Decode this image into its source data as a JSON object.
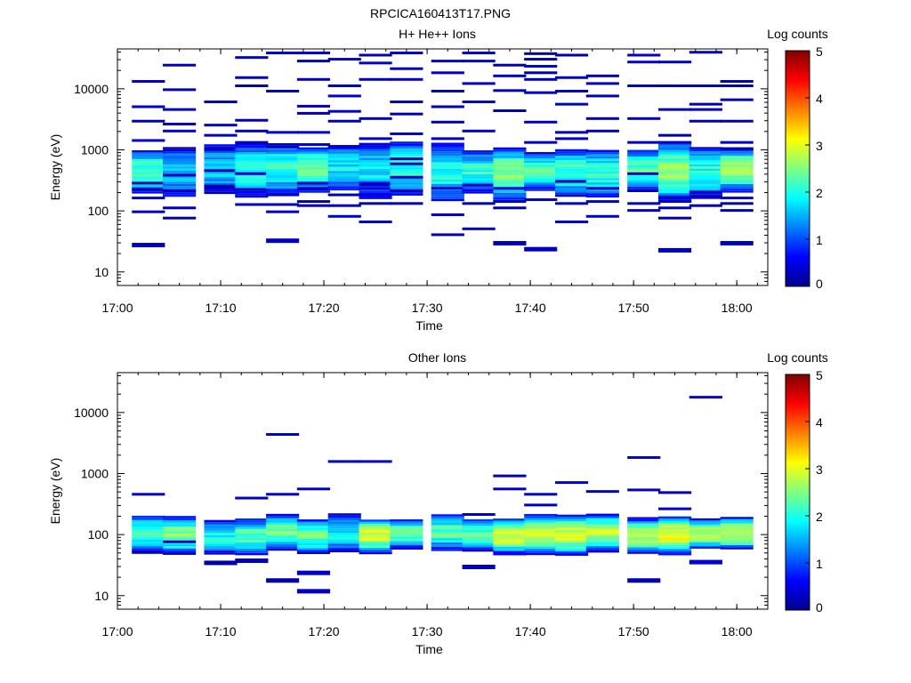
{
  "figure_title": "RPCICA160413T17.PNG",
  "colors": {
    "colormap": [
      "#00008f",
      "#0000ff",
      "#0080ff",
      "#00ffff",
      "#80ff80",
      "#ffff00",
      "#ff8000",
      "#ff0000",
      "#800000"
    ]
  },
  "chart_data": [
    {
      "type": "heatmap",
      "title": "H+ He++ Ions",
      "xlabel": "Time",
      "ylabel": "Energy (eV)",
      "colorbar_label": "Log counts",
      "colorbar_ticks": [
        "0",
        "1",
        "2",
        "3",
        "4",
        "5"
      ],
      "clim": [
        0,
        5
      ],
      "xlim": [
        "17:00",
        "18:03"
      ],
      "x_ticks": [
        "17:00",
        "17:10",
        "17:20",
        "17:30",
        "17:40",
        "17:50",
        "18:00"
      ],
      "ylim": [
        6,
        45000
      ],
      "y_scale": "log",
      "y_ticks": [
        "10",
        "100",
        "1000",
        "10000"
      ],
      "time_bins": [
        "17:03",
        "17:06",
        "17:10",
        "17:13",
        "17:16",
        "17:19",
        "17:22",
        "17:25",
        "17:28",
        "17:32",
        "17:35",
        "17:38",
        "17:41",
        "17:44",
        "17:47",
        "17:51",
        "17:54",
        "17:57",
        "18:00"
      ],
      "sparse_bins": [
        [
          28,
          1400,
          5000,
          13000,
          95,
          160,
          220,
          280,
          2900
        ],
        [
          75,
          110,
          210,
          380,
          2600,
          4500,
          9500,
          24000,
          2000
        ],
        [
          230,
          1000,
          1700,
          6000,
          250,
          450,
          2500
        ],
        [
          125,
          220,
          1300,
          2000,
          3000,
          11000,
          15000,
          32000,
          400
        ],
        [
          33,
          95,
          125,
          180,
          1100,
          1900,
          9000,
          38000
        ],
        [
          140,
          230,
          280,
          1200,
          1900,
          3900,
          5100,
          14000,
          28000,
          38000,
          120
        ],
        [
          80,
          120,
          180,
          2900,
          4200,
          7500,
          11000,
          30000
        ],
        [
          65,
          130,
          230,
          260,
          280,
          1500,
          3200,
          14000,
          26000,
          35000
        ],
        [
          130,
          210,
          350,
          580,
          700,
          1800,
          3800,
          6000,
          14000,
          21000,
          38000
        ],
        [
          40,
          85,
          230,
          1500,
          2800,
          5000,
          9000,
          18000,
          28000
        ],
        [
          50,
          130,
          260,
          2000,
          6000,
          12000,
          28000,
          38000
        ],
        [
          30,
          110,
          140,
          230,
          4300,
          9200,
          16000,
          24000
        ],
        [
          24,
          150,
          1300,
          2800,
          8500,
          14000,
          18000,
          23000,
          30000,
          37000
        ],
        [
          65,
          130,
          300,
          1500,
          1900,
          5500,
          9000,
          15000,
          35000
        ],
        [
          80,
          140,
          230,
          2000,
          3200,
          7500,
          12000,
          16000
        ],
        [
          100,
          130,
          210,
          400,
          1300,
          3200,
          11000,
          27000,
          35000
        ],
        [
          23,
          75,
          110,
          140,
          160,
          1300,
          1700,
          4500,
          11000,
          27000
        ],
        [
          120,
          170,
          200,
          2900,
          4500,
          5500,
          11000,
          39000
        ],
        [
          30,
          100,
          130,
          160,
          1000,
          1300,
          2900,
          6500,
          11000,
          13000
        ]
      ],
      "core_levels": [
        2.2,
        1.6,
        1.6,
        2.0,
        2.1,
        2.4,
        1.8,
        1.8,
        2.1,
        2.0,
        2.1,
        2.4,
        2.2,
        2.2,
        2.1,
        2.3,
        2.5,
        2.0,
        2.5
      ]
    },
    {
      "type": "heatmap",
      "title": "Other Ions",
      "xlabel": "Time",
      "ylabel": "Energy (eV)",
      "colorbar_label": "Log counts",
      "colorbar_ticks": [
        "0",
        "1",
        "2",
        "3",
        "4",
        "5"
      ],
      "clim": [
        0,
        5
      ],
      "xlim": [
        "17:00",
        "18:03"
      ],
      "x_ticks": [
        "17:00",
        "17:10",
        "17:20",
        "17:30",
        "17:40",
        "17:50",
        "18:00"
      ],
      "ylim": [
        6,
        45000
      ],
      "y_scale": "log",
      "y_ticks": [
        "10",
        "100",
        "1000",
        "10000"
      ],
      "time_bins": [
        "17:03",
        "17:06",
        "17:10",
        "17:13",
        "17:16",
        "17:19",
        "17:22",
        "17:25",
        "17:28",
        "17:32",
        "17:35",
        "17:38",
        "17:41",
        "17:44",
        "17:47",
        "17:51",
        "17:54",
        "17:57",
        "18:00"
      ],
      "sparse_bins": [
        [
          50,
          450
        ],
        [
          75
        ],
        [
          35
        ],
        [
          38,
          390
        ],
        [
          18,
          450,
          4300
        ],
        [
          12,
          24,
          550
        ],
        [
          1550
        ],
        [
          1550
        ],
        [],
        [],
        [
          30,
          210
        ],
        [
          550,
          900
        ],
        [
          450,
          300
        ],
        [
          700
        ],
        [
          500
        ],
        [
          18,
          530,
          1800
        ],
        [
          480,
          260
        ],
        [
          36,
          17500
        ],
        []
      ],
      "core_levels": [
        2.2,
        2.5,
        2.0,
        2.3,
        2.4,
        2.3,
        1.9,
        2.9,
        2.3,
        2.2,
        2.3,
        2.9,
        2.8,
        2.9,
        2.8,
        2.7,
        3.0,
        2.8,
        3.0
      ]
    }
  ]
}
